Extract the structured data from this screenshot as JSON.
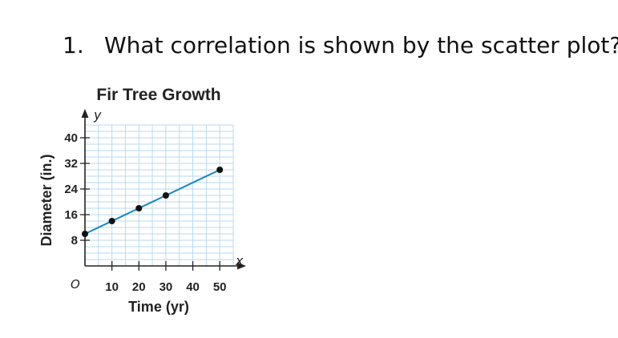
{
  "question": {
    "number": "1.",
    "text": "What correlation is shown by the scatter plot?"
  },
  "chart_data": {
    "type": "scatter",
    "title": "Fir Tree Growth",
    "xlabel": "Time (yr)",
    "ylabel": "Diameter (in.)",
    "x_axis_letter": "x",
    "y_axis_letter": "y",
    "origin_label": "O",
    "xlim": [
      0,
      55
    ],
    "ylim": [
      0,
      44
    ],
    "x_ticks": [
      10,
      20,
      30,
      40,
      50
    ],
    "y_ticks": [
      8,
      16,
      24,
      32,
      40
    ],
    "grid": true,
    "trend_line": true,
    "points": [
      {
        "x": 0,
        "y": 10
      },
      {
        "x": 10,
        "y": 14
      },
      {
        "x": 20,
        "y": 18
      },
      {
        "x": 30,
        "y": 22
      },
      {
        "x": 50,
        "y": 30
      }
    ],
    "colors": {
      "grid": "#b9daf2",
      "line": "#1b86c2",
      "point": "#111111",
      "axis": "#222222"
    }
  }
}
